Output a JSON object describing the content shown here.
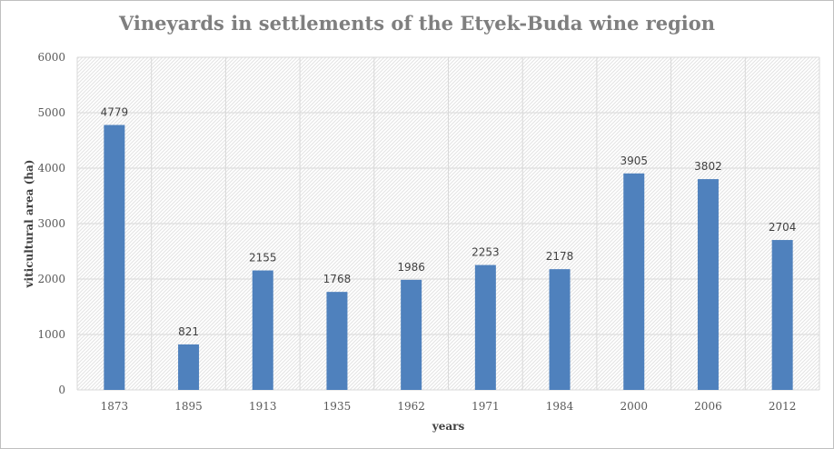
{
  "chart_data": {
    "type": "bar",
    "title": "Vineyards in settlements of the Etyek-Buda wine region",
    "xlabel": "years",
    "ylabel": "viticultural area (ha)",
    "categories": [
      "1873",
      "1895",
      "1913",
      "1935",
      "1962",
      "1971",
      "1984",
      "2000",
      "2006",
      "2012"
    ],
    "values": [
      4779,
      821,
      2155,
      1768,
      1986,
      2253,
      2178,
      3905,
      3802,
      2704
    ],
    "ylim": [
      0,
      6000
    ],
    "yticks": [
      "0",
      "1000",
      "2000",
      "3000",
      "4000",
      "5000",
      "6000"
    ],
    "bar_color": "#4f81bd",
    "grid": true,
    "data_labels": true,
    "legend": "none"
  }
}
